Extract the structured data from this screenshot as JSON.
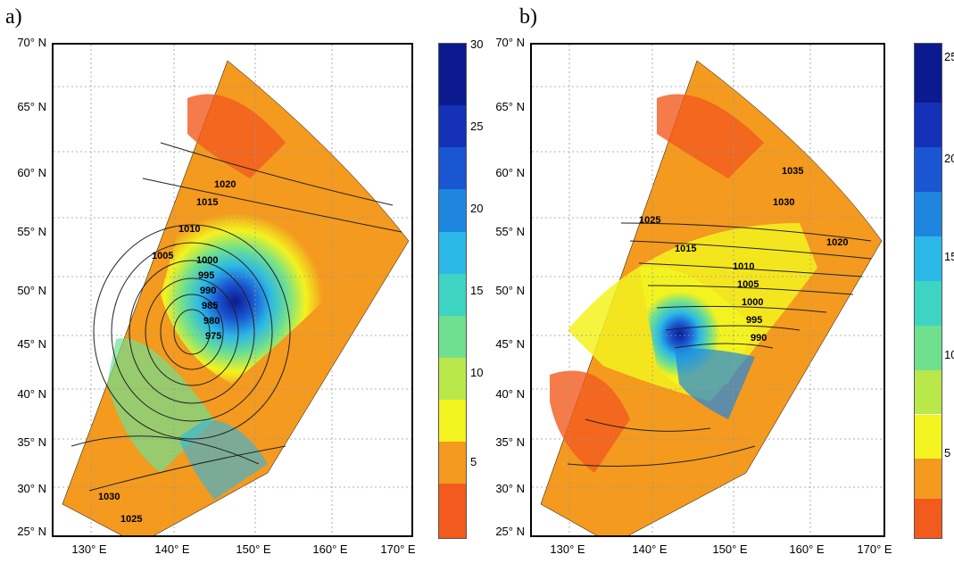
{
  "panels": [
    {
      "label": "a)",
      "lat_labels": [
        "70° N",
        "65° N",
        "60° N",
        "55° N",
        "50° N",
        "45° N",
        "40° N",
        "35° N",
        "30° N",
        "25° N"
      ],
      "lon_labels": [
        "130° E",
        "140° E",
        "150° E",
        "160° E",
        "170° E"
      ],
      "isobar_labels": [
        "1000",
        "995",
        "990",
        "985",
        "980",
        "975",
        "1005",
        "1010",
        "1015",
        "1020",
        "1025",
        "1030"
      ],
      "colorbar_ticks": [
        "30",
        "25",
        "20",
        "15",
        "10",
        "5"
      ],
      "cyclone_center": {
        "lon": 147,
        "lat": 50
      }
    },
    {
      "label": "b)",
      "lat_labels": [
        "70° N",
        "65° N",
        "60° N",
        "55° N",
        "50° N",
        "45° N",
        "40° N",
        "35° N",
        "30° N",
        "25° N"
      ],
      "lon_labels": [
        "130° E",
        "140° E",
        "150° E",
        "160° E",
        "170° E"
      ],
      "isobar_labels": [
        "1035",
        "1030",
        "1025",
        "1020",
        "1015",
        "1010",
        "1005",
        "1000",
        "995",
        "990"
      ],
      "colorbar_ticks": [
        "25",
        "20",
        "15",
        "10",
        "5"
      ],
      "cyclone_center": {
        "lon": 150,
        "lat": 50
      }
    }
  ],
  "colors": {
    "scale": [
      "#f25a1e",
      "#f39a1f",
      "#f4c521",
      "#f3f31f",
      "#b9e84a",
      "#6fe08f",
      "#3ed4c4",
      "#2bb8e6",
      "#1f86e0",
      "#1a55d2",
      "#1431b8",
      "#0c1a8f"
    ]
  }
}
